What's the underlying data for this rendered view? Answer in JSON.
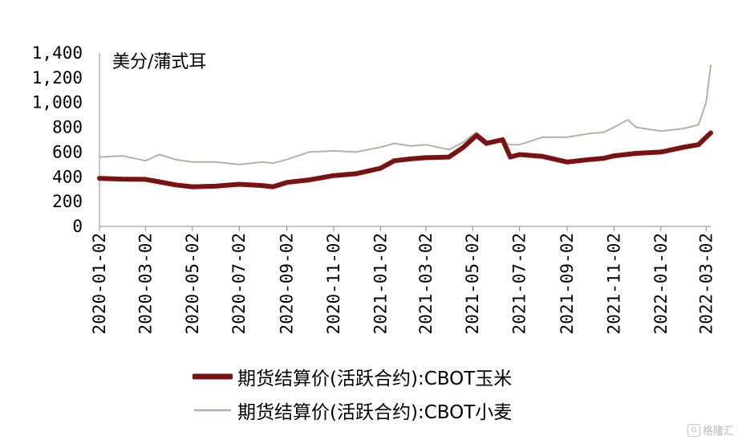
{
  "chart_data": {
    "type": "line",
    "unit_label": "美分/蒲式耳",
    "ylim": [
      0,
      1400
    ],
    "y_ticks": [
      0,
      200,
      400,
      600,
      800,
      1000,
      1200,
      1400
    ],
    "y_tick_labels": [
      "0",
      "200",
      "400",
      "600",
      "800",
      "1,000",
      "1,200",
      "1,400"
    ],
    "x_range": [
      "2020-01-02",
      "2022-03-08"
    ],
    "x_tick_labels": [
      "2020-01-02",
      "2020-03-02",
      "2020-05-02",
      "2020-07-02",
      "2020-09-02",
      "2020-11-02",
      "2021-01-02",
      "2021-03-02",
      "2021-05-02",
      "2021-07-02",
      "2021-09-02",
      "2021-11-02",
      "2022-01-02",
      "2022-03-02"
    ],
    "grid": false,
    "legend_position": "bottom",
    "series": [
      {
        "name": "期货结算价(活跃合约):CBOT玉米",
        "color": "#7a1212",
        "points": [
          [
            "2020-01-02",
            388
          ],
          [
            "2020-02-01",
            382
          ],
          [
            "2020-03-02",
            380
          ],
          [
            "2020-03-20",
            360
          ],
          [
            "2020-04-10",
            335
          ],
          [
            "2020-05-02",
            320
          ],
          [
            "2020-06-01",
            325
          ],
          [
            "2020-07-02",
            340
          ],
          [
            "2020-08-01",
            330
          ],
          [
            "2020-08-15",
            320
          ],
          [
            "2020-09-02",
            355
          ],
          [
            "2020-10-01",
            375
          ],
          [
            "2020-11-02",
            410
          ],
          [
            "2020-12-01",
            425
          ],
          [
            "2021-01-02",
            470
          ],
          [
            "2021-01-20",
            530
          ],
          [
            "2021-02-10",
            545
          ],
          [
            "2021-03-02",
            555
          ],
          [
            "2021-04-01",
            560
          ],
          [
            "2021-04-20",
            640
          ],
          [
            "2021-05-07",
            735
          ],
          [
            "2021-05-20",
            670
          ],
          [
            "2021-06-10",
            700
          ],
          [
            "2021-06-20",
            560
          ],
          [
            "2021-07-02",
            580
          ],
          [
            "2021-08-01",
            565
          ],
          [
            "2021-09-02",
            520
          ],
          [
            "2021-10-01",
            540
          ],
          [
            "2021-10-20",
            550
          ],
          [
            "2021-11-02",
            570
          ],
          [
            "2021-12-01",
            590
          ],
          [
            "2022-01-02",
            600
          ],
          [
            "2022-02-01",
            640
          ],
          [
            "2022-02-20",
            660
          ],
          [
            "2022-03-02",
            720
          ],
          [
            "2022-03-08",
            755
          ]
        ]
      },
      {
        "name": "期货结算价(活跃合约):CBOT小麦",
        "color": "#b3b2a4",
        "points": [
          [
            "2020-01-02",
            560
          ],
          [
            "2020-02-01",
            570
          ],
          [
            "2020-03-02",
            530
          ],
          [
            "2020-03-20",
            580
          ],
          [
            "2020-04-10",
            540
          ],
          [
            "2020-05-02",
            520
          ],
          [
            "2020-06-01",
            520
          ],
          [
            "2020-07-02",
            500
          ],
          [
            "2020-08-01",
            520
          ],
          [
            "2020-08-15",
            510
          ],
          [
            "2020-09-02",
            540
          ],
          [
            "2020-10-01",
            600
          ],
          [
            "2020-11-02",
            610
          ],
          [
            "2020-12-01",
            600
          ],
          [
            "2021-01-02",
            640
          ],
          [
            "2021-01-20",
            670
          ],
          [
            "2021-02-10",
            650
          ],
          [
            "2021-03-02",
            660
          ],
          [
            "2021-04-01",
            620
          ],
          [
            "2021-04-20",
            680
          ],
          [
            "2021-05-07",
            760
          ],
          [
            "2021-05-20",
            690
          ],
          [
            "2021-06-10",
            680
          ],
          [
            "2021-06-20",
            660
          ],
          [
            "2021-07-02",
            660
          ],
          [
            "2021-08-01",
            720
          ],
          [
            "2021-09-02",
            720
          ],
          [
            "2021-10-01",
            750
          ],
          [
            "2021-10-20",
            760
          ],
          [
            "2021-11-02",
            800
          ],
          [
            "2021-11-20",
            860
          ],
          [
            "2021-12-01",
            800
          ],
          [
            "2022-01-02",
            770
          ],
          [
            "2022-02-01",
            790
          ],
          [
            "2022-02-20",
            820
          ],
          [
            "2022-03-02",
            1000
          ],
          [
            "2022-03-08",
            1300
          ]
        ]
      }
    ]
  },
  "watermark": "格隆汇",
  "watermark_icon": "logo-icon"
}
